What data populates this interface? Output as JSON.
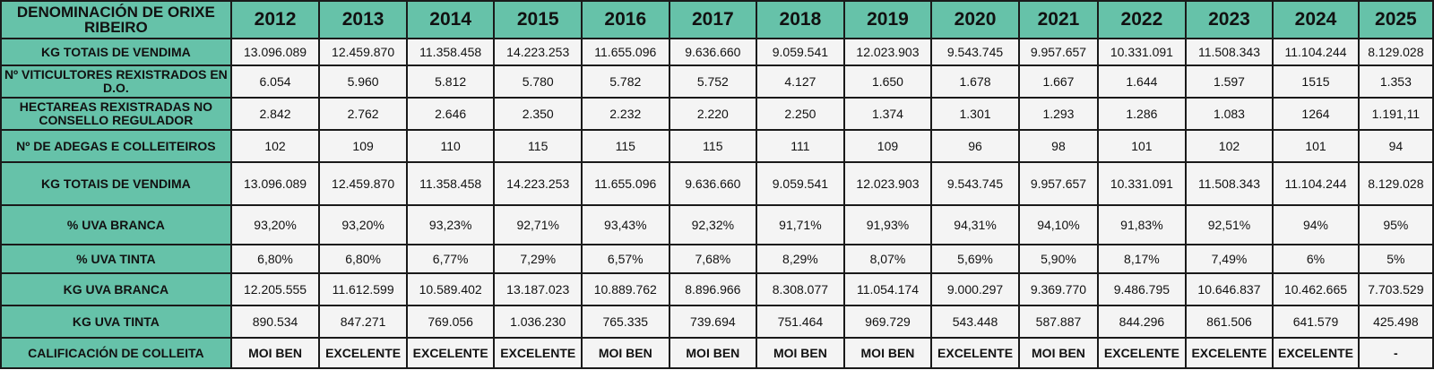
{
  "table": {
    "corner_label": "DENOMINACIÓN DE ORIXE RIBEIRO",
    "years": [
      "2012",
      "2013",
      "2014",
      "2015",
      "2016",
      "2017",
      "2018",
      "2019",
      "2020",
      "2021",
      "2022",
      "2023",
      "2024",
      "2025"
    ],
    "rows": [
      {
        "label": "KG TOTAIS DE VENDIMA",
        "values": [
          "13.096.089",
          "12.459.870",
          "11.358.458",
          "14.223.253",
          "11.655.096",
          "9.636.660",
          "9.059.541",
          "12.023.903",
          "9.543.745",
          "9.957.657",
          "10.331.091",
          "11.508.343",
          "11.104.244",
          "8.129.028"
        ]
      },
      {
        "label": "Nº VITICULTORES REXISTRADOS EN D.O.",
        "values": [
          "6.054",
          "5.960",
          "5.812",
          "5.780",
          "5.782",
          "5.752",
          "4.127",
          "1.650",
          "1.678",
          "1.667",
          "1.644",
          "1.597",
          "1515",
          "1.353"
        ]
      },
      {
        "label": "HECTAREAS REXISTRADAS NO CONSELLO REGULADOR",
        "values": [
          "2.842",
          "2.762",
          "2.646",
          "2.350",
          "2.232",
          "2.220",
          "2.250",
          "1.374",
          "1.301",
          "1.293",
          "1.286",
          "1.083",
          "1264",
          "1.191,11"
        ]
      },
      {
        "label": "Nº DE ADEGAS E COLLEITEIROS",
        "values": [
          "102",
          "109",
          "110",
          "115",
          "115",
          "115",
          "111",
          "109",
          "96",
          "98",
          "101",
          "102",
          "101",
          "94"
        ]
      },
      {
        "label": "KG TOTAIS DE VENDIMA",
        "values": [
          "13.096.089",
          "12.459.870",
          "11.358.458",
          "14.223.253",
          "11.655.096",
          "9.636.660",
          "9.059.541",
          "12.023.903",
          "9.543.745",
          "9.957.657",
          "10.331.091",
          "11.508.343",
          "11.104.244",
          "8.129.028"
        ]
      },
      {
        "label": "% UVA BRANCA",
        "values": [
          "93,20%",
          "93,20%",
          "93,23%",
          "92,71%",
          "93,43%",
          "92,32%",
          "91,71%",
          "91,93%",
          "94,31%",
          "94,10%",
          "91,83%",
          "92,51%",
          "94%",
          "95%"
        ]
      },
      {
        "label": "% UVA TINTA",
        "values": [
          "6,80%",
          "6,80%",
          "6,77%",
          "7,29%",
          "6,57%",
          "7,68%",
          "8,29%",
          "8,07%",
          "5,69%",
          "5,90%",
          "8,17%",
          "7,49%",
          "6%",
          "5%"
        ]
      },
      {
        "label": "KG UVA BRANCA",
        "values": [
          "12.205.555",
          "11.612.599",
          "10.589.402",
          "13.187.023",
          "10.889.762",
          "8.896.966",
          "8.308.077",
          "11.054.174",
          "9.000.297",
          "9.369.770",
          "9.486.795",
          "10.646.837",
          "10.462.665",
          "7.703.529"
        ]
      },
      {
        "label": "KG UVA TINTA",
        "values": [
          "890.534",
          "847.271",
          "769.056",
          "1.036.230",
          "765.335",
          "739.694",
          "751.464",
          "969.729",
          "543.448",
          "587.887",
          "844.296",
          "861.506",
          "641.579",
          "425.498"
        ]
      },
      {
        "label": "CALIFICACIÓN DE COLLEITA",
        "values": [
          "MOI BEN",
          "EXCELENTE",
          "EXCELENTE",
          "EXCELENTE",
          "MOI BEN",
          "MOI BEN",
          "MOI BEN",
          "MOI BEN",
          "EXCELENTE",
          "MOI BEN",
          "EXCELENTE",
          "EXCELENTE",
          "EXCELENTE",
          "-"
        ]
      }
    ]
  }
}
